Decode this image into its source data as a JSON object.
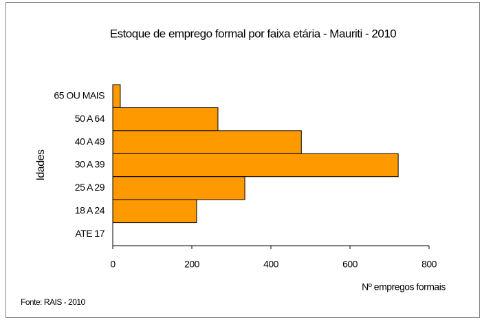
{
  "chart_data": {
    "type": "bar",
    "orientation": "horizontal",
    "title": "Estoque de emprego formal por faixa etária - Mauriti - 2010",
    "xlabel": "Nº empregos formais",
    "ylabel": "Idades",
    "source": "Fonte: RAIS - 2010",
    "categories": [
      "65 OU MAIS",
      "50 A 64",
      "40 A 49",
      "30 A 39",
      "25 A 29",
      "18 A 24",
      "ATE 17"
    ],
    "values": [
      19,
      266,
      477,
      722,
      334,
      212,
      0
    ],
    "color": "#ff9900",
    "xlim": [
      0,
      800
    ],
    "xticks": [
      0,
      200,
      400,
      600,
      800
    ],
    "grid": false
  }
}
